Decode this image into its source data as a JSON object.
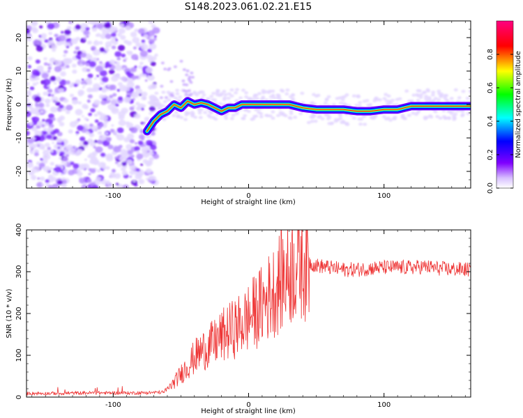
{
  "title": "S148.2023.061.02.21.E15",
  "chart_data": [
    {
      "type": "heatmap",
      "title": "S148.2023.061.02.21.E15",
      "xlabel": "Height of straight line (km)",
      "ylabel": "Frequency (Hz)",
      "xlim": [
        -164,
        164
      ],
      "ylim": [
        -25,
        25
      ],
      "x_ticks": [
        -100,
        0,
        100
      ],
      "y_ticks": [
        -20,
        -10,
        0,
        10,
        20
      ],
      "colorbar": {
        "label": "Normalized spectral amplitude",
        "range": [
          0,
          1
        ],
        "ticks": [
          0.0,
          0.2,
          0.4,
          0.6,
          0.8
        ],
        "colors": [
          "#ffffff",
          "#8000ff",
          "#0000ff",
          "#00ffff",
          "#00ff00",
          "#ffff00",
          "#ff0000",
          "#ff0080"
        ]
      },
      "signal_trace": {
        "height_km": [
          -75,
          -70,
          -65,
          -60,
          -55,
          -50,
          -45,
          -40,
          -35,
          -30,
          -25,
          -20,
          -15,
          -10,
          -5,
          0,
          10,
          20,
          30,
          40,
          50,
          60,
          70,
          80,
          90,
          100,
          110,
          120,
          130,
          140,
          150,
          164
        ],
        "frequency_hz": [
          -8,
          -5,
          -3,
          -2,
          0,
          -1,
          1,
          0,
          0.5,
          0,
          -1,
          -2,
          -1,
          -1,
          0,
          0,
          0,
          0,
          0,
          -1,
          -1.5,
          -1.5,
          -1.5,
          -2,
          -2,
          -1.5,
          -1.5,
          -0.5,
          -0.5,
          -0.5,
          -0.5,
          -0.5
        ]
      },
      "noise_region_km": [
        -164,
        -72
      ]
    },
    {
      "type": "line",
      "xlabel": "Height of straight line (km)",
      "ylabel": "SNR (10 * v/v)",
      "xlim": [
        -164,
        164
      ],
      "ylim": [
        0,
        400
      ],
      "x_ticks": [
        -100,
        0,
        100
      ],
      "y_ticks": [
        0,
        100,
        200,
        300,
        400
      ],
      "color": "#ee3333",
      "series": [
        {
          "x": [
            -164,
            -140,
            -120,
            -100,
            -80,
            -62,
            -55,
            -50,
            -45,
            -40,
            -35,
            -30,
            -25,
            -20,
            -15,
            -10,
            -5,
            0,
            5,
            10,
            15,
            20,
            25,
            30,
            35,
            40,
            45,
            50,
            60,
            70,
            80,
            90,
            100,
            110,
            120,
            130,
            140,
            150,
            164
          ],
          "values": [
            9,
            9,
            10,
            10,
            10,
            12,
            35,
            55,
            75,
            95,
            110,
            120,
            130,
            145,
            155,
            165,
            175,
            190,
            205,
            220,
            240,
            260,
            285,
            300,
            320,
            330,
            320,
            315,
            310,
            305,
            305,
            308,
            310,
            310,
            310,
            312,
            308,
            306,
            305
          ]
        }
      ]
    }
  ]
}
